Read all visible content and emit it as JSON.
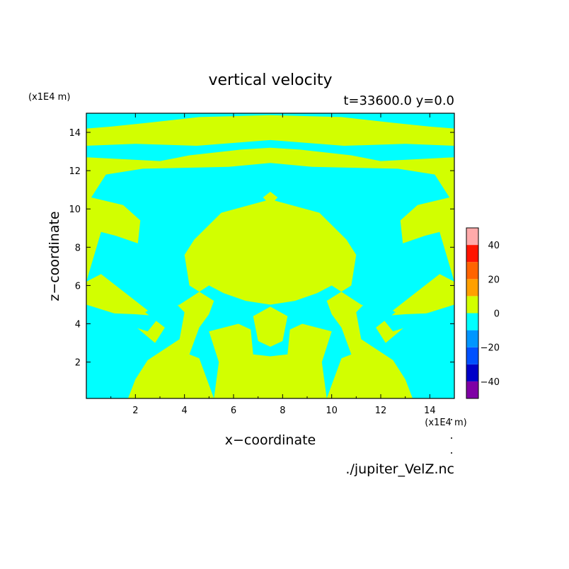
{
  "chart_data": {
    "type": "heatmap",
    "title": "vertical velocity",
    "subtitle": "t=33600.0 y=0.0",
    "xlabel": "x−coordinate",
    "ylabel": "z−coordinate",
    "x_unit_label": "(x1E4 m)",
    "y_unit_label": "(x1E4 m)",
    "source_label": "./jupiter_VelZ.nc",
    "xlim": [
      0,
      15
    ],
    "ylim": [
      0.1,
      15
    ],
    "x_ticks": [
      2,
      4,
      6,
      8,
      10,
      12,
      14
    ],
    "x_tick_labels": [
      "2",
      "4",
      "6",
      "8",
      "10",
      "12",
      "14"
    ],
    "y_ticks": [
      2,
      4,
      6,
      8,
      10,
      12,
      14
    ],
    "y_tick_labels": [
      "2",
      "4",
      "6",
      "8",
      "10",
      "12",
      "14"
    ],
    "colorbar": {
      "levels": [
        -50,
        -40,
        -30,
        -20,
        -10,
        0,
        10,
        20,
        30,
        40,
        50
      ],
      "colors": [
        "#7f00a5",
        "#0000c8",
        "#0050ff",
        "#0096ff",
        "#00ffff",
        "#d2ff00",
        "#ffa000",
        "#ff6400",
        "#ff1400",
        "#ffaaaa"
      ],
      "tick_values": [
        -40,
        -20,
        0,
        20,
        40
      ],
      "tick_labels": [
        "−40",
        "−20",
        "0",
        "20",
        "40"
      ]
    },
    "field": {
      "colors": {
        "positive_0_10": "#d2ff00",
        "negative_m10_0": "#00ffff"
      },
      "symmetry": "mirror about x=7.5",
      "negative_regions_left_half": [
        [
          [
            0,
            5.0
          ],
          [
            1.5,
            4.4
          ],
          [
            2.8,
            3.0
          ],
          [
            3.2,
            3.8
          ],
          [
            2.4,
            4.6
          ],
          [
            3.4,
            5.4
          ],
          [
            4.0,
            4.6
          ],
          [
            3.8,
            3.2
          ],
          [
            2.5,
            2.1
          ],
          [
            2.0,
            1.1
          ],
          [
            1.7,
            0.1
          ],
          [
            0,
            0.1
          ]
        ],
        [
          [
            0,
            4.0
          ],
          [
            1.5,
            4.0
          ],
          [
            2.5,
            3.6
          ],
          [
            3.0,
            4.4
          ],
          [
            2.0,
            4.5
          ],
          [
            0,
            4.6
          ]
        ],
        [
          [
            0,
            6.2
          ],
          [
            0.6,
            8.8
          ],
          [
            1.2,
            8.6
          ],
          [
            2.1,
            8.2
          ],
          [
            2.2,
            9.4
          ],
          [
            1.5,
            10.2
          ],
          [
            0.2,
            10.6
          ],
          [
            0.8,
            11.8
          ],
          [
            2.3,
            12.1
          ],
          [
            5.8,
            12.2
          ],
          [
            7.5,
            12.4
          ],
          [
            7.5,
            10.5
          ],
          [
            5.5,
            9.8
          ],
          [
            4.4,
            8.4
          ],
          [
            4.0,
            7.6
          ],
          [
            4.2,
            6.0
          ],
          [
            5.2,
            5.2
          ],
          [
            5.0,
            4.5
          ],
          [
            4.6,
            3.8
          ],
          [
            4.2,
            2.4
          ],
          [
            4.6,
            2.2
          ],
          [
            5.2,
            0.1
          ],
          [
            5.4,
            2.0
          ],
          [
            5.0,
            3.6
          ],
          [
            6.2,
            4.0
          ],
          [
            6.7,
            3.7
          ],
          [
            6.8,
            2.4
          ],
          [
            7.5,
            2.3
          ],
          [
            7.5,
            5.0
          ],
          [
            6.5,
            5.2
          ],
          [
            5.6,
            5.6
          ],
          [
            5.0,
            6.0
          ],
          [
            3.8,
            5.0
          ],
          [
            2.6,
            4.6
          ],
          [
            1.6,
            5.6
          ],
          [
            0.6,
            6.6
          ]
        ],
        [
          [
            0,
            12.7
          ],
          [
            3.0,
            12.5
          ],
          [
            4.2,
            12.8
          ],
          [
            6.3,
            13.1
          ],
          [
            7.5,
            13.2
          ],
          [
            7.5,
            13.6
          ],
          [
            4.5,
            13.3
          ],
          [
            2.0,
            13.4
          ],
          [
            0,
            13.3
          ]
        ],
        [
          [
            0,
            14.2
          ],
          [
            1.0,
            14.3
          ],
          [
            2.5,
            14.5
          ],
          [
            4.6,
            14.8
          ],
          [
            7.5,
            14.9
          ],
          [
            7.5,
            15
          ],
          [
            0,
            15
          ]
        ]
      ],
      "positive_regions_center": [
        [
          [
            7.5,
            5.8
          ],
          [
            6.0,
            6.0
          ],
          [
            5.4,
            6.8
          ],
          [
            5.6,
            8.6
          ],
          [
            6.6,
            9.0
          ],
          [
            7.1,
            8.6
          ],
          [
            7.3,
            7.5
          ],
          [
            7.5,
            7.2
          ]
        ],
        [
          [
            7.5,
            10.2
          ],
          [
            7.2,
            10.6
          ],
          [
            7.5,
            10.9
          ]
        ],
        [
          [
            7.5,
            2.8
          ],
          [
            7.0,
            3.1
          ],
          [
            6.8,
            4.4
          ],
          [
            7.5,
            4.9
          ]
        ]
      ]
    }
  }
}
